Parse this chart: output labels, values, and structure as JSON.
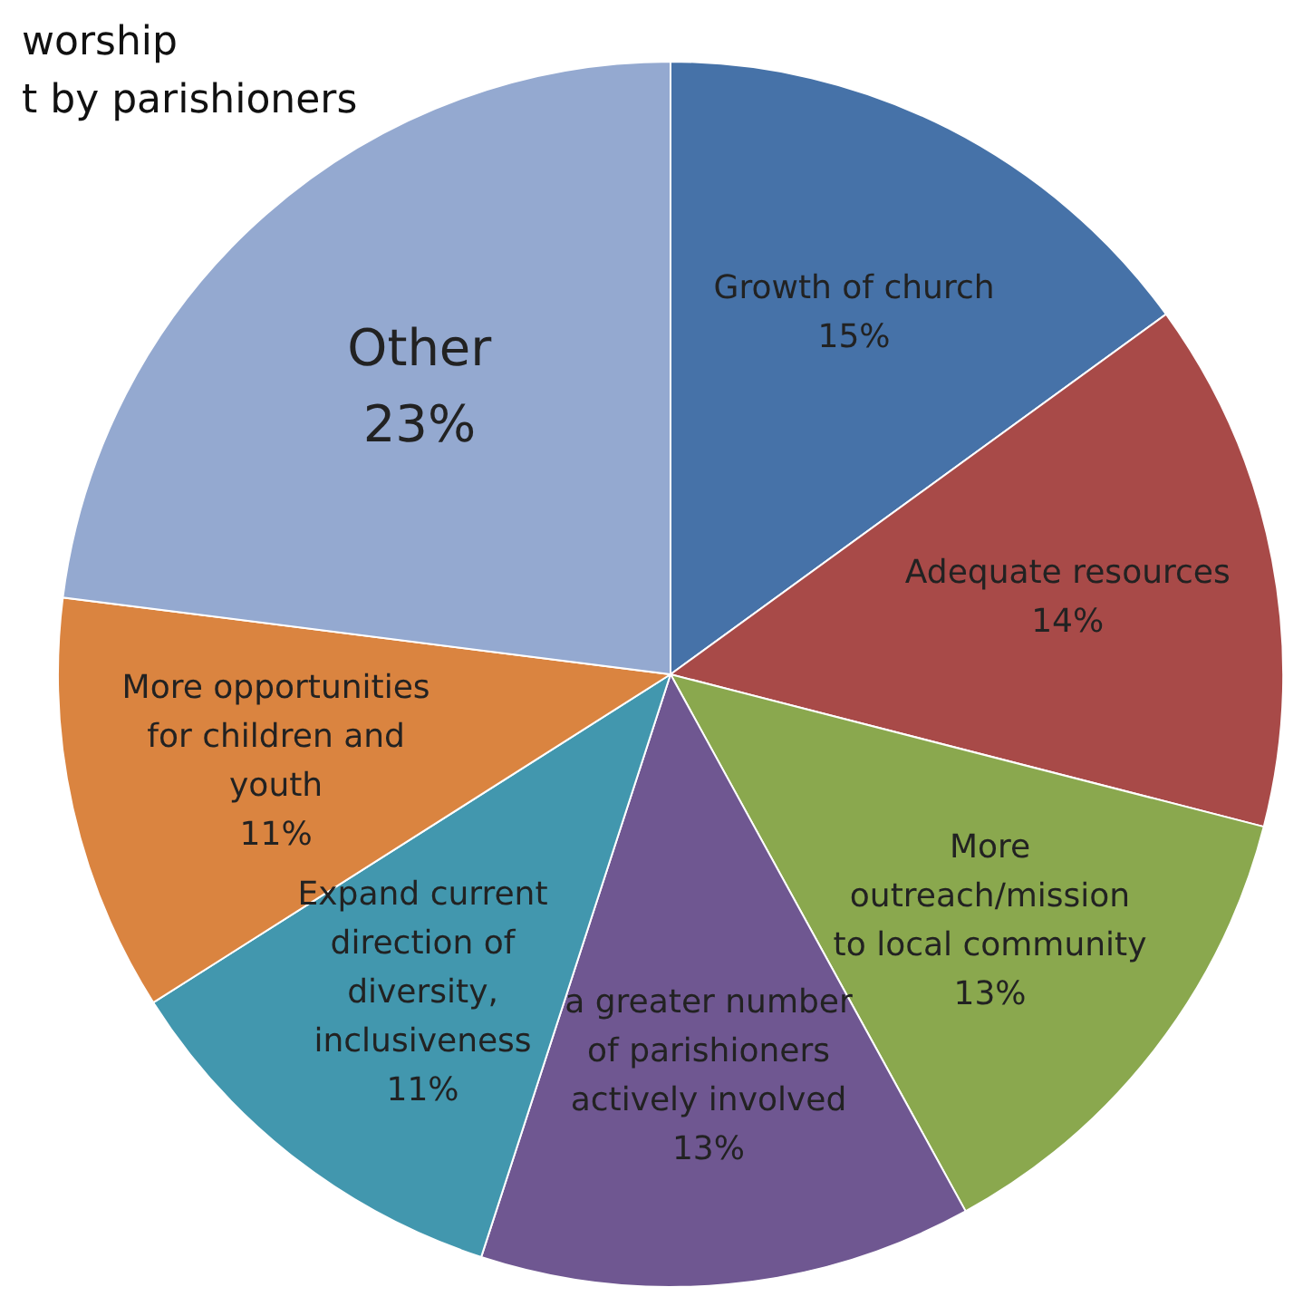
{
  "chart_data": {
    "type": "pie",
    "categories": [
      "Growth of church",
      "Adequate resources",
      "More outreach/mission to local community",
      "a greater number of parishioners actively involved",
      "Expand current direction of diversity, inclusiveness",
      "More opportunities for children and youth",
      "Other"
    ],
    "values": [
      15,
      14,
      13,
      13,
      11,
      11,
      23
    ],
    "value_labels": [
      "15%",
      "14%",
      "13%",
      "13%",
      "11%",
      "11%",
      "23%"
    ],
    "colors": [
      "#4672a8",
      "#a84a48",
      "#8aa84e",
      "#6f5791",
      "#4297ae",
      "#da8440",
      "#94a9d0"
    ],
    "annotations": [
      "worship",
      "t by parishioners"
    ]
  }
}
